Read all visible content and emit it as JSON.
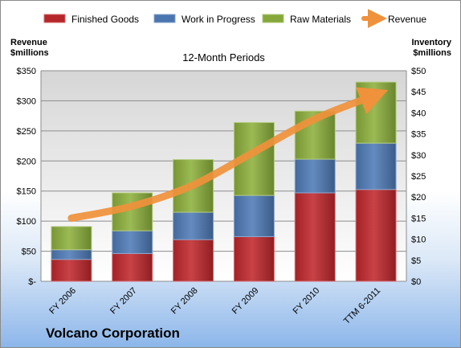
{
  "chart_data": {
    "type": "bar",
    "stacked": true,
    "subtitle": "12-Month Periods",
    "left_axis_title": [
      "Revenue",
      "$millions"
    ],
    "right_axis_title": [
      "Inventory",
      "$millions"
    ],
    "categories": [
      "FY 2006",
      "FY 2007",
      "FY 2008",
      "FY 2009",
      "FY 2010",
      "TTM 6-2011"
    ],
    "series": [
      {
        "name": "Finished Goods",
        "axis": "right",
        "color": "#c0282d",
        "values": [
          5.2,
          6.6,
          9.9,
          10.6,
          21.0,
          21.8
        ]
      },
      {
        "name": "Work in Progress",
        "axis": "right",
        "color": "#4f7bb7",
        "values": [
          2.3,
          5.4,
          6.5,
          9.8,
          8.0,
          11.0
        ]
      },
      {
        "name": "Raw Materials",
        "axis": "right",
        "color": "#8db13d",
        "values": [
          5.5,
          9.0,
          12.5,
          17.3,
          11.4,
          14.5
        ]
      },
      {
        "name": "Revenue",
        "axis": "left",
        "type": "line",
        "color": "#f0913b",
        "values": [
          105,
          125,
          160,
          215,
          270,
          310
        ]
      }
    ],
    "ylim_left": [
      0,
      350
    ],
    "ylim_right": [
      0,
      50
    ],
    "left_ticks": [
      "$-",
      "$50",
      "$100",
      "$150",
      "$200",
      "$250",
      "$300",
      "$350"
    ],
    "right_ticks": [
      "$0",
      "$5",
      "$10",
      "$15",
      "$20",
      "$25",
      "$30",
      "$35",
      "$40",
      "$45",
      "$50"
    ],
    "grid": true,
    "legend_position": "top"
  },
  "company": "Volcano Corporation"
}
